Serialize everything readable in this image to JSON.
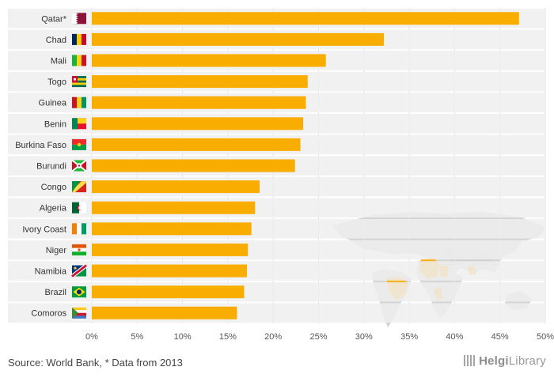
{
  "chart_data": {
    "type": "bar",
    "orientation": "horizontal",
    "categories": [
      "Qatar*",
      "Chad",
      "Mali",
      "Togo",
      "Guinea",
      "Benin",
      "Burkina Faso",
      "Burundi",
      "Congo",
      "Algeria",
      "Ivory Coast",
      "Niger",
      "Namibia",
      "Brazil",
      "Comoros"
    ],
    "values": [
      47.1,
      32.2,
      25.8,
      23.8,
      23.6,
      23.3,
      23.0,
      22.4,
      18.5,
      18.0,
      17.6,
      17.2,
      17.1,
      16.8,
      16.0
    ],
    "xlim": [
      0,
      50
    ],
    "x_ticks": [
      "0%",
      "5%",
      "10%",
      "15%",
      "20%",
      "25%",
      "30%",
      "35%",
      "40%",
      "45%",
      "50%"
    ],
    "bar_color": "#f9ad00",
    "row_band_color": "#efefef",
    "grid": true,
    "flags": [
      "qatar-flag-icon",
      "chad-flag-icon",
      "mali-flag-icon",
      "togo-flag-icon",
      "guinea-flag-icon",
      "benin-flag-icon",
      "burkina-faso-flag-icon",
      "burundi-flag-icon",
      "congo-flag-icon",
      "algeria-flag-icon",
      "ivory-coast-flag-icon",
      "niger-flag-icon",
      "namibia-flag-icon",
      "brazil-flag-icon",
      "comoros-flag-icon"
    ],
    "background": "world-map-icon"
  },
  "footer": {
    "source": "Source: World Bank, * Data from 2013"
  },
  "logo": {
    "prefix": "Helgi",
    "suffix": "Library"
  }
}
